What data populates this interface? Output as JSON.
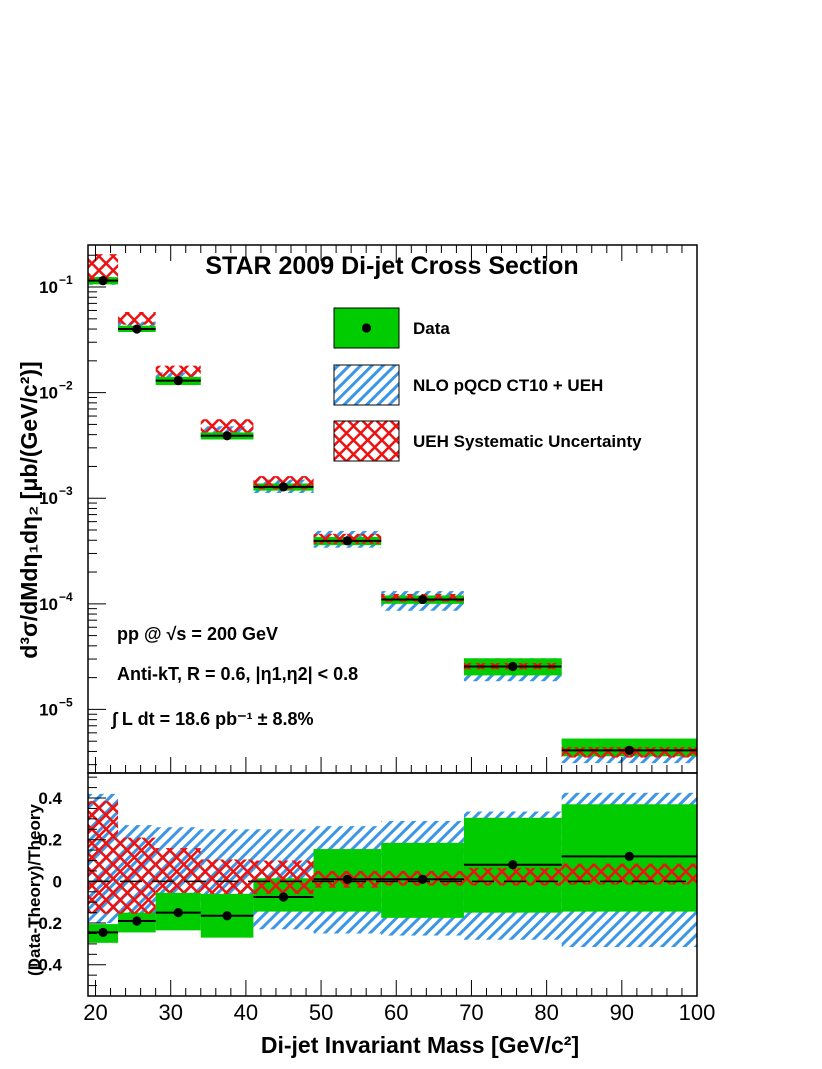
{
  "chart_data": [
    {
      "type": "scatter",
      "panel": "cross_section",
      "title": "STAR 2009 Di-jet Cross Section",
      "ylabel": "d³σ/dMdη₁dη₂ [μb/(GeV/c²)]",
      "yscale": "log",
      "ylim": [
        2.5e-06,
        0.25
      ],
      "xlim": [
        19,
        100
      ],
      "bins": [
        [
          19,
          23
        ],
        [
          23,
          28
        ],
        [
          28,
          34
        ],
        [
          34,
          41
        ],
        [
          41,
          49
        ],
        [
          49,
          58
        ],
        [
          58,
          69
        ],
        [
          69,
          82
        ],
        [
          82,
          100
        ]
      ],
      "x": [
        21.0,
        25.5,
        31.0,
        37.5,
        45.0,
        53.5,
        63.5,
        75.5,
        91.0
      ],
      "series": [
        {
          "name": "Data",
          "values": [
            0.115,
            0.04,
            0.013,
            0.0039,
            0.00128,
            0.000395,
            0.00011,
            2.55e-05,
            4.1e-06
          ],
          "sys_low": [
            0.106,
            0.0375,
            0.0118,
            0.0036,
            0.00118,
            0.00036,
            0.0001,
            2.1e-05,
            3.6e-06
          ],
          "sys_high": [
            0.124,
            0.043,
            0.0141,
            0.0042,
            0.00138,
            0.00043,
            0.00012,
            3.05e-05,
            5.3e-06
          ]
        },
        {
          "name": "NLO pQCD CT10 + UEH",
          "low": [
            0.105,
            0.039,
            0.0125,
            0.0037,
            0.00112,
            0.00034,
            8.6e-05,
            1.85e-05,
            3.1e-06
          ],
          "high": [
            0.125,
            0.047,
            0.0155,
            0.0048,
            0.0015,
            0.00049,
            0.000132,
            3.05e-05,
            5.1e-06
          ]
        },
        {
          "name": "UEH Systematic Uncertainty",
          "low": [
            0.118,
            0.044,
            0.0141,
            0.0042,
            0.00122,
            0.00037,
            0.000105,
            2.4e-05,
            3.5e-06
          ],
          "high": [
            0.205,
            0.058,
            0.018,
            0.0056,
            0.00162,
            0.00046,
            0.000124,
            2.75e-05,
            4.4e-06
          ]
        }
      ],
      "yticks": [
        {
          "value": 1e-05,
          "label": "10",
          "exp": "−5"
        },
        {
          "value": 0.0001,
          "label": "10",
          "exp": "−4"
        },
        {
          "value": 0.001,
          "label": "10",
          "exp": "−3"
        },
        {
          "value": 0.01,
          "label": "10",
          "exp": "−2"
        },
        {
          "value": 0.1,
          "label": "10",
          "exp": "−1"
        }
      ],
      "legend": [
        {
          "label": "Data",
          "style": "green-point"
        },
        {
          "label": "NLO pQCD CT10 + UEH",
          "style": "blue-hatch"
        },
        {
          "label": "UEH Systematic Uncertainty",
          "style": "red-crosshatch"
        }
      ],
      "annotations": {
        "collision": "pp @ √s = 200 GeV",
        "jets": "Anti-kT, R = 0.6, |η1,η2| < 0.8",
        "lumi": "∫ L dt = 18.6 pb⁻¹ ± 8.8%"
      },
      "colors": {
        "green": "#00cc00",
        "blue": "#3c96e6",
        "red": "#ee1111"
      }
    },
    {
      "type": "scatter",
      "panel": "ratio",
      "xlabel": "Di-jet Invariant Mass [GeV/c²]",
      "ylabel": "(Data-Theory)/Theory",
      "ylim": [
        -0.55,
        0.52
      ],
      "xlim": [
        19,
        100
      ],
      "bins": [
        [
          19,
          23
        ],
        [
          23,
          28
        ],
        [
          28,
          34
        ],
        [
          34,
          41
        ],
        [
          41,
          49
        ],
        [
          49,
          58
        ],
        [
          58,
          69
        ],
        [
          69,
          82
        ],
        [
          82,
          100
        ]
      ],
      "x": [
        21.0,
        25.5,
        31.0,
        37.5,
        45.0,
        53.5,
        63.5,
        75.5,
        91.0
      ],
      "values": [
        -0.245,
        -0.19,
        -0.15,
        -0.165,
        -0.075,
        0.01,
        0.01,
        0.08,
        0.12
      ],
      "data_sys_low": [
        -0.295,
        -0.245,
        -0.235,
        -0.27,
        -0.145,
        -0.145,
        -0.175,
        -0.15,
        -0.145
      ],
      "data_sys_high": [
        -0.205,
        -0.15,
        -0.055,
        -0.06,
        0.015,
        0.155,
        0.185,
        0.305,
        0.37
      ],
      "theory_low": [
        -0.2,
        -0.2,
        -0.21,
        -0.21,
        -0.23,
        -0.25,
        -0.26,
        -0.28,
        -0.315
      ],
      "theory_high": [
        0.42,
        0.27,
        0.26,
        0.25,
        0.25,
        0.265,
        0.29,
        0.335,
        0.425
      ],
      "ueh_low": [
        -0.155,
        -0.155,
        -0.055,
        -0.06,
        -0.06,
        -0.03,
        -0.02,
        -0.02,
        -0.015
      ],
      "ueh_high": [
        0.385,
        0.21,
        0.16,
        0.105,
        0.1,
        0.05,
        0.05,
        0.065,
        0.085
      ],
      "yticks": [
        -0.4,
        -0.2,
        0,
        0.2,
        0.4
      ],
      "ytick_labels": [
        "−0.4",
        "−0.2",
        "0",
        "0.2",
        "0.4"
      ],
      "xticks": [
        20,
        30,
        40,
        50,
        60,
        70,
        80,
        90,
        100
      ],
      "xtick_labels": [
        "20",
        "30",
        "40",
        "50",
        "60",
        "70",
        "80",
        "90",
        "100"
      ]
    }
  ]
}
